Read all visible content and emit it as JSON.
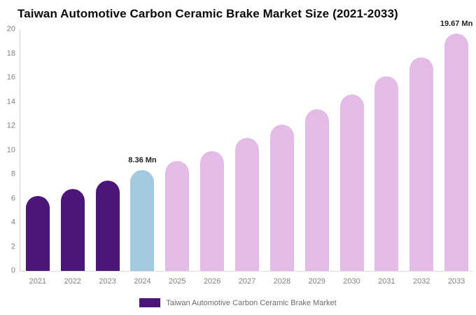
{
  "chart_data": {
    "type": "bar",
    "title": "Taiwan Automotive Carbon Ceramic Brake Market Size (2021-2033)",
    "unit": "Mn",
    "categories": [
      "2021",
      "2022",
      "2023",
      "2024",
      "2025",
      "2026",
      "2027",
      "2028",
      "2029",
      "2030",
      "2031",
      "2032",
      "2033"
    ],
    "values": [
      6.2,
      6.8,
      7.5,
      8.36,
      9.1,
      9.9,
      11.0,
      12.1,
      13.4,
      14.6,
      16.1,
      17.7,
      19.67
    ],
    "data_labels": [
      "",
      "",
      "",
      "8.36 Mn",
      "",
      "",
      "",
      "",
      "",
      "",
      "",
      "",
      "19.67 Mn"
    ],
    "bar_roles": [
      "historical",
      "historical",
      "historical",
      "base-year",
      "forecast",
      "forecast",
      "forecast",
      "forecast",
      "forecast",
      "forecast",
      "forecast",
      "forecast",
      "forecast"
    ],
    "colors": {
      "historical": "#4B1579",
      "base-year": "#A2C9DE",
      "forecast": "#E3BBE7"
    },
    "ylim": [
      0,
      20
    ],
    "yticks": [
      0,
      2,
      4,
      6,
      8,
      10,
      12,
      14,
      16,
      18,
      20
    ],
    "grid": false,
    "axis_color": "#cccccc",
    "tick_label_color": "#808080",
    "data_label_color": "#222222",
    "legend": {
      "position": "bottom-center",
      "items": [
        {
          "label": "Taiwan Automotive Carbon Ceramic Brake Market",
          "color": "#4B1579"
        }
      ]
    }
  }
}
